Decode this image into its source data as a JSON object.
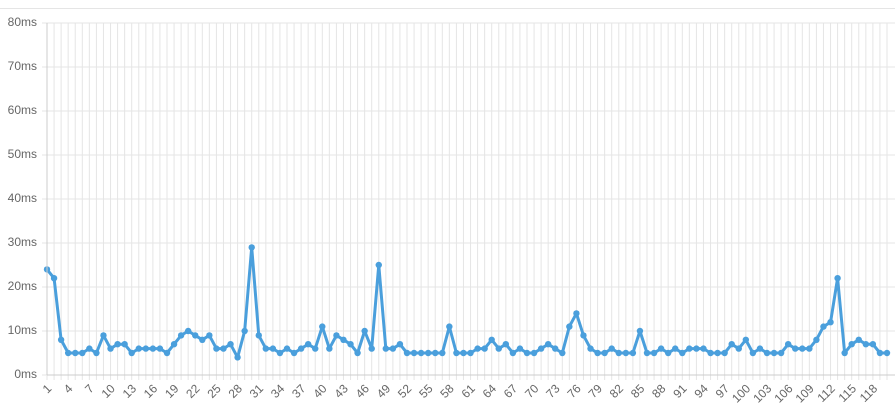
{
  "chart_data": {
    "type": "line",
    "color": "#4a9fdc",
    "grid": true,
    "categories": [
      "1",
      null,
      null,
      "4",
      null,
      null,
      "7",
      null,
      null,
      "10",
      null,
      null,
      "13",
      null,
      null,
      "16",
      null,
      null,
      "19",
      null,
      null,
      "22",
      null,
      null,
      "25",
      null,
      null,
      "28",
      null,
      null,
      "31",
      null,
      null,
      "34",
      null,
      null,
      "37",
      null,
      null,
      "40",
      null,
      null,
      "43",
      null,
      null,
      "46",
      null,
      null,
      "49",
      null,
      null,
      "52",
      null,
      null,
      "55",
      null,
      null,
      "58",
      null,
      null,
      "61",
      null,
      null,
      "64",
      null,
      null,
      "67",
      null,
      null,
      "70",
      null,
      null,
      "73",
      null,
      null,
      "76",
      null,
      null,
      "79",
      null,
      null,
      "82",
      null,
      null,
      "85",
      null,
      null,
      "88",
      null,
      null,
      "91",
      null,
      null,
      "94",
      null,
      null,
      "97",
      null,
      null,
      "100",
      null,
      null,
      "103",
      null,
      null,
      "106",
      null,
      null,
      "109",
      null,
      null,
      "112",
      null,
      null,
      "115",
      null,
      null,
      "118",
      null,
      null
    ],
    "values": [
      24,
      22,
      8,
      5,
      5,
      5,
      6,
      5,
      9,
      6,
      7,
      7,
      5,
      6,
      6,
      6,
      6,
      5,
      7,
      9,
      10,
      9,
      8,
      9,
      6,
      6,
      7,
      4,
      10,
      29,
      9,
      6,
      6,
      5,
      6,
      5,
      6,
      7,
      6,
      11,
      6,
      9,
      8,
      7,
      5,
      10,
      6,
      25,
      6,
      6,
      7,
      5,
      5,
      5,
      5,
      5,
      5,
      11,
      5,
      5,
      5,
      6,
      6,
      8,
      6,
      7,
      5,
      6,
      5,
      5,
      6,
      7,
      6,
      5,
      11,
      14,
      9,
      6,
      5,
      5,
      6,
      5,
      5,
      5,
      10,
      5,
      5,
      6,
      5,
      6,
      5,
      6,
      6,
      6,
      5,
      5,
      5,
      7,
      6,
      8,
      5,
      6,
      5,
      5,
      5,
      7,
      6,
      6,
      6,
      8,
      11,
      12,
      22,
      5,
      7,
      8,
      7,
      7,
      5,
      5
    ],
    "ylim": [
      0,
      80
    ],
    "yticks": [
      {
        "value": 0,
        "label": "0ms"
      },
      {
        "value": 10,
        "label": "10ms"
      },
      {
        "value": 20,
        "label": "20ms"
      },
      {
        "value": 30,
        "label": "30ms"
      },
      {
        "value": 40,
        "label": "40ms"
      },
      {
        "value": 50,
        "label": "50ms"
      },
      {
        "value": 60,
        "label": "60ms"
      },
      {
        "value": 70,
        "label": "70ms"
      },
      {
        "value": 80,
        "label": "80ms"
      }
    ]
  }
}
